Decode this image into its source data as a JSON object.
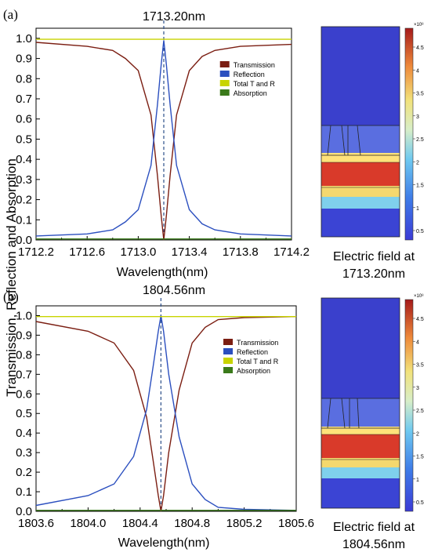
{
  "y_axis_label": "Transmission, Reflection and Absorption",
  "chart_data": [
    {
      "panel_label": "(a)",
      "type": "line",
      "resonance_label": "1713.20nm",
      "resonance_x": 1713.2,
      "xlabel": "Wavelength(nm)",
      "xlim": [
        1712.2,
        1714.2
      ],
      "ylim": [
        0,
        1.05
      ],
      "xticks": [
        "1712.2",
        "1712.6",
        "1713.0",
        "1713.4",
        "1713.8",
        "1714.2"
      ],
      "yticks": [
        "0.0",
        "0.1",
        "0.2",
        "0.3",
        "0.4",
        "0.5",
        "0.6",
        "0.7",
        "0.8",
        "0.9",
        "1.0"
      ],
      "legend_position": "upper-right",
      "series": [
        {
          "name": "Transmission",
          "color": "#7b1e12",
          "x": [
            1712.2,
            1712.6,
            1712.8,
            1712.9,
            1713.0,
            1713.1,
            1713.15,
            1713.18,
            1713.2,
            1713.22,
            1713.25,
            1713.3,
            1713.4,
            1713.5,
            1713.6,
            1713.8,
            1714.2
          ],
          "y": [
            0.98,
            0.96,
            0.94,
            0.9,
            0.84,
            0.62,
            0.32,
            0.12,
            0.0,
            0.12,
            0.32,
            0.62,
            0.84,
            0.91,
            0.94,
            0.96,
            0.97
          ]
        },
        {
          "name": "Reflection",
          "color": "#2b4fbf",
          "x": [
            1712.2,
            1712.6,
            1712.8,
            1712.9,
            1713.0,
            1713.1,
            1713.15,
            1713.18,
            1713.2,
            1713.22,
            1713.25,
            1713.3,
            1713.4,
            1713.5,
            1713.6,
            1713.8,
            1714.2
          ],
          "y": [
            0.02,
            0.03,
            0.05,
            0.09,
            0.15,
            0.37,
            0.67,
            0.87,
            0.99,
            0.87,
            0.67,
            0.37,
            0.15,
            0.08,
            0.05,
            0.03,
            0.02
          ]
        },
        {
          "name": "Total T and R",
          "color": "#c8d400",
          "x": [
            1712.2,
            1714.2
          ],
          "y": [
            0.995,
            0.995
          ]
        },
        {
          "name": "Absorption",
          "color": "#3a7a1a",
          "x": [
            1712.2,
            1714.2
          ],
          "y": [
            0.005,
            0.005
          ]
        }
      ],
      "field_map": {
        "caption_line1": "Electric field at",
        "caption_line2": "1713.20nm",
        "colorbar_exponent": "×10⁸",
        "colorbar_ticks": [
          "4.5",
          "4",
          "3.5",
          "3",
          "2.5",
          "2",
          "1.5",
          "1",
          "0.5"
        ]
      }
    },
    {
      "panel_label": "(b)",
      "type": "line",
      "resonance_label": "1804.56nm",
      "resonance_x": 1804.56,
      "xlabel": "Wavelength(nm)",
      "xlim": [
        1803.6,
        1805.6
      ],
      "ylim": [
        0,
        1.05
      ],
      "xticks": [
        "1803.6",
        "1804.0",
        "1804.4",
        "1804.8",
        "1805.2",
        "1805.6"
      ],
      "yticks": [
        "0.0",
        "0.1",
        "0.2",
        "0.3",
        "0.4",
        "0.5",
        "0.6",
        "0.7",
        "0.8",
        "0.9",
        "1.0"
      ],
      "legend_position": "upper-right",
      "series": [
        {
          "name": "Transmission",
          "color": "#7b1e12",
          "x": [
            1803.6,
            1804.0,
            1804.2,
            1804.35,
            1804.45,
            1804.5,
            1804.54,
            1804.56,
            1804.58,
            1804.62,
            1804.7,
            1804.8,
            1804.9,
            1805.0,
            1805.2,
            1805.6
          ],
          "y": [
            0.97,
            0.92,
            0.86,
            0.72,
            0.48,
            0.26,
            0.08,
            0.0,
            0.08,
            0.3,
            0.62,
            0.86,
            0.94,
            0.98,
            0.99,
            0.995
          ]
        },
        {
          "name": "Reflection",
          "color": "#2b4fbf",
          "x": [
            1803.6,
            1804.0,
            1804.2,
            1804.35,
            1804.45,
            1804.5,
            1804.54,
            1804.56,
            1804.58,
            1804.62,
            1804.7,
            1804.8,
            1804.9,
            1805.0,
            1805.2,
            1805.6
          ],
          "y": [
            0.03,
            0.08,
            0.14,
            0.28,
            0.52,
            0.74,
            0.92,
            1.0,
            0.92,
            0.7,
            0.38,
            0.14,
            0.06,
            0.02,
            0.01,
            0.005
          ]
        },
        {
          "name": "Total T and R",
          "color": "#c8d400",
          "x": [
            1803.6,
            1805.6
          ],
          "y": [
            0.995,
            0.995
          ]
        },
        {
          "name": "Absorption",
          "color": "#3a7a1a",
          "x": [
            1803.6,
            1805.6
          ],
          "y": [
            0.005,
            0.005
          ]
        }
      ],
      "field_map": {
        "caption_line1": "Electric field at",
        "caption_line2": "1804.56nm",
        "colorbar_exponent": "×10⁸",
        "colorbar_ticks": [
          "4.5",
          "4",
          "3.5",
          "3",
          "2.5",
          "2",
          "1.5",
          "1",
          "0.5"
        ]
      }
    }
  ]
}
